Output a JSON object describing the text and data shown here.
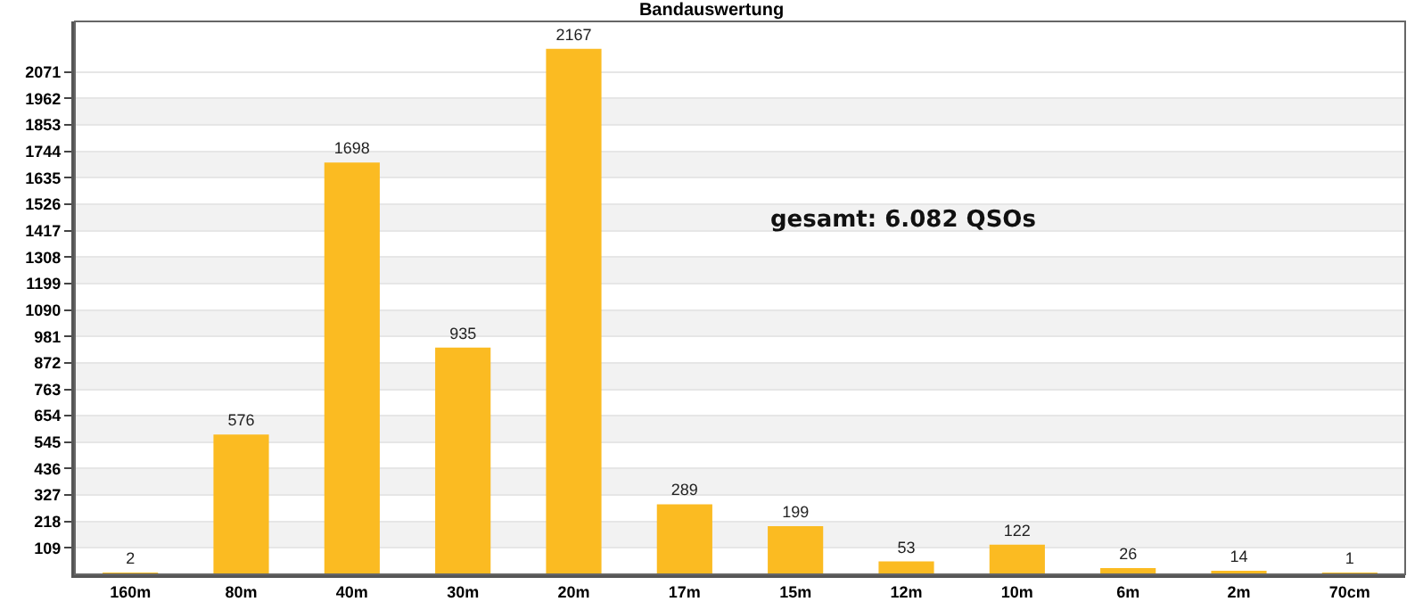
{
  "chart_data": {
    "type": "bar",
    "title": "Bandauswertung",
    "categories": [
      "160m",
      "80m",
      "40m",
      "30m",
      "20m",
      "17m",
      "15m",
      "12m",
      "10m",
      "6m",
      "2m",
      "70cm"
    ],
    "values": [
      2,
      576,
      1698,
      935,
      2167,
      289,
      199,
      53,
      122,
      26,
      14,
      1
    ],
    "color": "#fbbb22",
    "ylim": [
      0,
      2280
    ],
    "yticks": [
      109,
      218,
      327,
      436,
      545,
      654,
      763,
      872,
      981,
      1090,
      1199,
      1308,
      1417,
      1526,
      1635,
      1744,
      1853,
      1962,
      2071
    ],
    "grid": "y",
    "data_labels": true,
    "annotations": [
      "gesamt: 6.082 QSOs"
    ]
  }
}
